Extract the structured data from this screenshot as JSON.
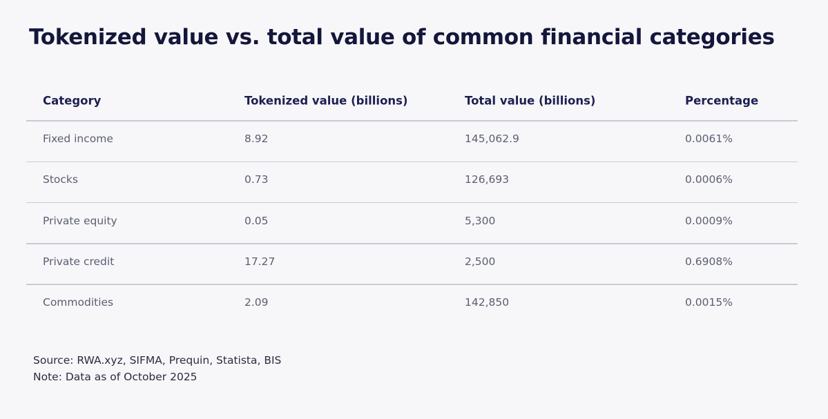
{
  "header": {
    "title": "Tokenized value vs. total value of common financial categories"
  },
  "table": {
    "columns": [
      "Category",
      "Tokenized value (billions)",
      "Total value (billions)",
      "Percentage"
    ],
    "rows": [
      [
        "Fixed income",
        "8.92",
        "145,062.9",
        "0.0061%"
      ],
      [
        "Stocks",
        "0.73",
        "126,693",
        "0.0006%"
      ],
      [
        "Private equity",
        "0.05",
        "5,300",
        "0.0009%"
      ],
      [
        "Private credit",
        "17.27",
        "2,500",
        "0.6908%"
      ],
      [
        "Commodities",
        "2.09",
        "142,850",
        "0.0015%"
      ]
    ]
  },
  "footer": {
    "source": "Source: RWA.xyz, SIFMA, Prequin, Statista, BIS",
    "note": "Note: Data as of October 2025"
  }
}
